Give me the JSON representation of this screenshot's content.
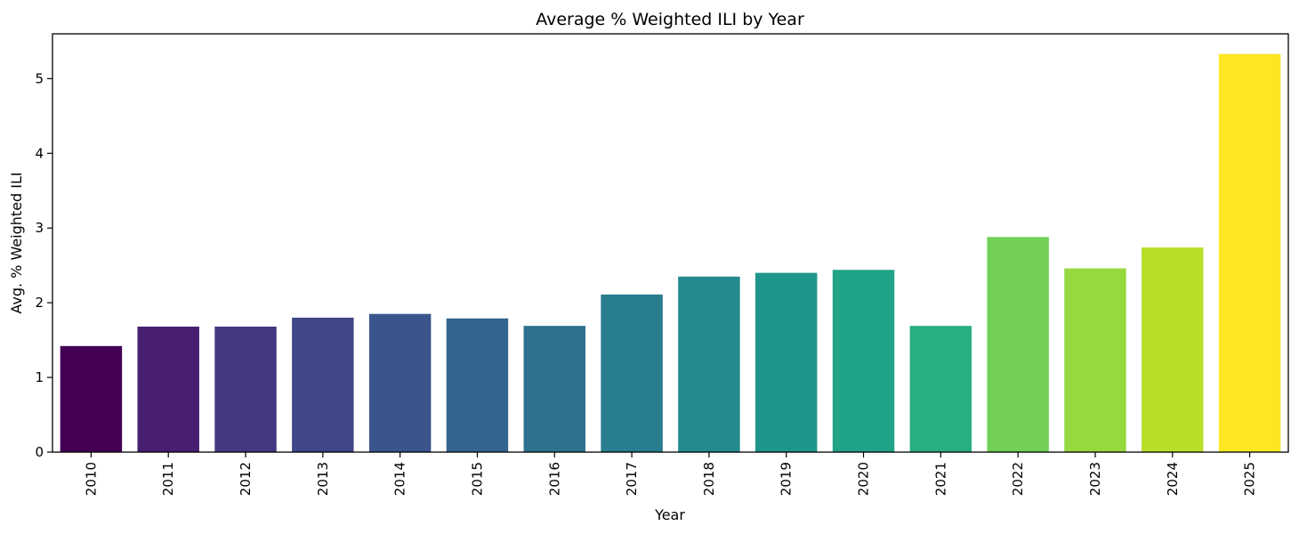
{
  "chart_data": {
    "type": "bar",
    "title": "Average % Weighted ILI by Year",
    "xlabel": "Year",
    "ylabel": "Avg. % Weighted ILI",
    "categories": [
      "2010",
      "2011",
      "2012",
      "2013",
      "2014",
      "2015",
      "2016",
      "2017",
      "2018",
      "2019",
      "2020",
      "2021",
      "2022",
      "2023",
      "2024",
      "2025"
    ],
    "values": [
      1.42,
      1.68,
      1.68,
      1.8,
      1.85,
      1.79,
      1.69,
      2.11,
      2.35,
      2.4,
      2.44,
      1.69,
      2.88,
      2.46,
      2.74,
      5.33
    ],
    "colors": [
      "#440154",
      "#481f70",
      "#453781",
      "#3f4788",
      "#39558c",
      "#32648e",
      "#2d718e",
      "#287d8e",
      "#238a8d",
      "#1f968b",
      "#20a386",
      "#29af7f",
      "#73d056",
      "#95d840",
      "#b8de29",
      "#fde725"
    ],
    "yticks": [
      0,
      1,
      2,
      3,
      4,
      5
    ],
    "ylim": [
      0,
      5.6
    ],
    "grid": false,
    "legend": "none"
  }
}
